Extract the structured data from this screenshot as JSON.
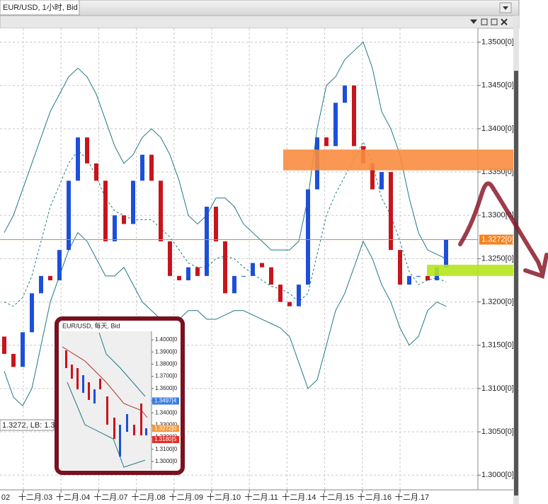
{
  "header": {
    "title": "EUR/USD, 1小时, Bid"
  },
  "chart_data": {
    "type": "candlestick",
    "open": [
      1.316,
      1.314,
      1.3125,
      1.3165,
      1.321,
      1.323,
      1.3225,
      1.326,
      1.334,
      1.339,
      1.336,
      1.334,
      1.327,
      1.33,
      1.329,
      1.334,
      1.337,
      1.334,
      1.327,
      1.323,
      1.3225,
      1.324,
      1.323,
      1.331,
      1.327,
      1.321,
      1.323,
      1.323,
      1.3245,
      1.324,
      1.322,
      1.32,
      1.3195,
      1.322,
      1.333,
      1.339,
      1.338,
      1.343,
      1.345,
      1.338,
      1.336,
      1.333,
      1.335,
      1.326,
      1.322,
      1.323,
      1.323,
      1.3225,
      1.324
    ],
    "close": [
      1.314,
      1.3125,
      1.3165,
      1.321,
      1.323,
      1.3225,
      1.326,
      1.334,
      1.339,
      1.336,
      1.334,
      1.327,
      1.33,
      1.329,
      1.334,
      1.337,
      1.334,
      1.327,
      1.323,
      1.3225,
      1.324,
      1.323,
      1.331,
      1.327,
      1.321,
      1.323,
      1.323,
      1.3245,
      1.324,
      1.322,
      1.32,
      1.3195,
      1.322,
      1.333,
      1.339,
      1.338,
      1.343,
      1.345,
      1.338,
      1.336,
      1.333,
      1.335,
      1.326,
      1.322,
      1.323,
      1.323,
      1.3225,
      1.324,
      1.3272
    ],
    "up_color": "#1d4fd8",
    "down_color": "#c8141b",
    "bands": {
      "color": "#1f7a80",
      "upper": [
        1.328,
        1.33,
        1.333,
        1.336,
        1.339,
        1.342,
        1.344,
        1.346,
        1.347,
        1.346,
        1.344,
        1.341,
        1.338,
        1.336,
        1.337,
        1.339,
        1.34,
        1.339,
        1.337,
        1.334,
        1.33,
        1.329,
        1.33,
        1.332,
        1.332,
        1.331,
        1.329,
        1.328,
        1.327,
        1.326,
        1.326,
        1.326,
        1.327,
        1.332,
        1.34,
        1.345,
        1.346,
        1.348,
        1.349,
        1.35,
        1.347,
        1.342,
        1.34,
        1.337,
        1.332,
        1.328,
        1.326,
        1.3255,
        1.325
      ],
      "middle": [
        1.32,
        1.3195,
        1.3205,
        1.323,
        1.327,
        1.331,
        1.3335,
        1.336,
        1.3375,
        1.3365,
        1.3345,
        1.332,
        1.3305,
        1.33,
        1.3295,
        1.3295,
        1.3295,
        1.3285,
        1.3275,
        1.326,
        1.3245,
        1.324,
        1.324,
        1.325,
        1.3253,
        1.325,
        1.324,
        1.3233,
        1.3225,
        1.3218,
        1.3215,
        1.321,
        1.32,
        1.321,
        1.3255,
        1.33,
        1.3325,
        1.3345,
        1.3365,
        1.3385,
        1.336,
        1.332,
        1.33,
        1.327,
        1.3235,
        1.322,
        1.3225,
        1.3228,
        1.3223
      ],
      "lower": [
        1.312,
        1.309,
        1.308,
        1.31,
        1.315,
        1.32,
        1.323,
        1.326,
        1.328,
        1.327,
        1.325,
        1.323,
        1.323,
        1.324,
        1.322,
        1.32,
        1.319,
        1.318,
        1.318,
        1.318,
        1.319,
        1.319,
        1.318,
        1.318,
        1.3185,
        1.319,
        1.319,
        1.3185,
        1.318,
        1.3175,
        1.317,
        1.316,
        1.313,
        1.31,
        1.311,
        1.315,
        1.319,
        1.321,
        1.324,
        1.327,
        1.325,
        1.322,
        1.32,
        1.317,
        1.315,
        1.316,
        1.319,
        1.32,
        1.3195
      ]
    },
    "ylim": [
      1.2983,
      1.3516
    ],
    "yticks": [
      {
        "value": 1.3,
        "label": "1.3000[0]"
      },
      {
        "value": 1.305,
        "label": "1.3050[0]"
      },
      {
        "value": 1.31,
        "label": "1.3100[0]"
      },
      {
        "value": 1.315,
        "label": "1.3150[0]"
      },
      {
        "value": 1.32,
        "label": "1.3200[0]"
      },
      {
        "value": 1.325,
        "label": "1.3250[0]"
      },
      {
        "value": 1.33,
        "label": "1.3300[0]"
      },
      {
        "value": 1.335,
        "label": "1.3350[0]"
      },
      {
        "value": 1.34,
        "label": "1.3400[0]"
      },
      {
        "value": 1.345,
        "label": "1.3450[0]"
      },
      {
        "value": 1.35,
        "label": "1.3500[0]"
      }
    ],
    "grid": true,
    "x_labels": [
      "02",
      "十二月.03",
      "十二月.04",
      "十二月.07",
      "十二月.08",
      "十二月.09",
      "十二月.10",
      "十二月.11",
      "十二月.14",
      "十二月.15",
      "十二月.16",
      "十二月.17"
    ],
    "price_line": {
      "value": 1.3272,
      "label": "1.3272[0]",
      "color": "#f58220"
    },
    "zones": [
      {
        "from": 1.3352,
        "to": 1.3376,
        "color": "#f98c3f"
      },
      {
        "from": 1.323,
        "to": 1.3243,
        "color": "#b5e61d"
      }
    ],
    "cursor_label": "1.3272, LB: 1.3"
  },
  "inset": {
    "title": "EUR/USD, 每天, Bid",
    "ylim": [
      1.293,
      1.407
    ],
    "yticks": [
      {
        "value": 1.4,
        "label": "1.4000[0"
      },
      {
        "value": 1.39,
        "label": "1.3900[0"
      },
      {
        "value": 1.38,
        "label": "1.3800[0"
      },
      {
        "value": 1.37,
        "label": "1.3700[0"
      },
      {
        "value": 1.36,
        "label": "1.3600[0"
      },
      {
        "value": 1.35,
        "label": "1.3500[0"
      },
      {
        "value": 1.34,
        "label": "1.3400[0"
      },
      {
        "value": 1.33,
        "label": "1.3300[0"
      },
      {
        "value": 1.32,
        "label": "1.3200[0"
      },
      {
        "value": 1.31,
        "label": "1.3100[0"
      },
      {
        "value": 1.3,
        "label": "1.3000[0"
      }
    ],
    "price_tags": [
      {
        "value": 1.3497,
        "label": "1.3497[4",
        "color": "#3b7de0"
      },
      {
        "value": 1.3272,
        "label": "1.3272[0",
        "color": "#f59a3c"
      },
      {
        "value": 1.318,
        "label": "1.3180[5",
        "color": "#e0302a"
      }
    ]
  }
}
